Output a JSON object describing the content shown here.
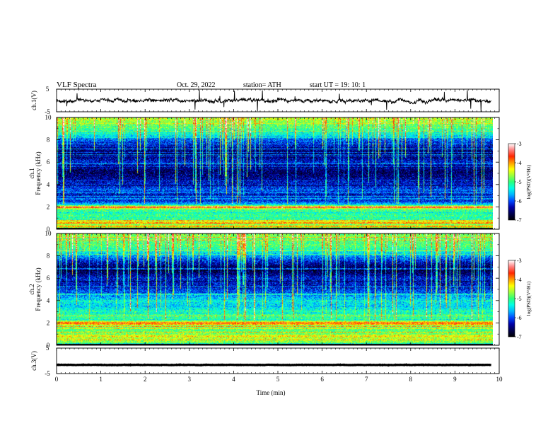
{
  "header": {
    "title": "VLF  Spectra",
    "date": "Oct. 29, 2022",
    "station": "station= ATH",
    "start": "start  UT  =    19: 10: 1"
  },
  "colors": {
    "colormap": [
      "#000000",
      "#00004d",
      "#0000a8",
      "#0047ff",
      "#00b4ff",
      "#00ffe6",
      "#2cff7a",
      "#9bff3c",
      "#ffff00",
      "#ff9900",
      "#ff2600",
      "#ff8080",
      "#ffffff"
    ],
    "trace": "#000000"
  },
  "chart_data": [
    {
      "type": "line",
      "name": "channel-1-voltage",
      "ylabel": "ch.1(V)",
      "ylim": [
        -5,
        5
      ],
      "yticks": [
        "5",
        "-5"
      ],
      "xlim": [
        0,
        10
      ],
      "trace_level": 0,
      "trace_noise": 1.6
    },
    {
      "type": "heatmap",
      "name": "channel-1-spectrogram",
      "ylabel": "ch.1\nFrequency  (kHz)",
      "ylim": [
        0,
        10
      ],
      "yticks": [
        "0",
        "2",
        "4",
        "6",
        "8",
        "10"
      ],
      "xlim": [
        0,
        9.85
      ],
      "colorbar": {
        "label": "log(PSD)(V²/Hz)",
        "range": [
          -7,
          -3
        ],
        "ticks": [
          "-3",
          "-4",
          "-5",
          "-6",
          "-7"
        ]
      },
      "profile_khz": [
        0.0,
        0.2,
        0.4,
        0.6,
        0.8,
        1.0,
        1.2,
        1.6,
        1.9,
        2.0,
        2.2,
        2.5,
        3.0,
        3.5,
        4.0,
        4.5,
        5.0,
        5.5,
        6.0,
        6.5,
        7.0,
        7.5,
        8.0,
        8.5,
        9.0,
        9.5,
        10.0
      ],
      "profile_logpsd": [
        -7.0,
        -4.0,
        -4.8,
        -4.1,
        -4.8,
        -5.2,
        -5.0,
        -5.3,
        -4.4,
        -3.9,
        -5.5,
        -6.1,
        -6.2,
        -6.0,
        -6.2,
        -6.4,
        -6.6,
        -6.5,
        -6.2,
        -6.5,
        -6.5,
        -6.3,
        -5.9,
        -5.3,
        -5.0,
        -4.7,
        -4.6
      ]
    },
    {
      "type": "heatmap",
      "name": "channel-2-spectrogram",
      "ylabel": "ch.2\nFrequency  (kHz)",
      "ylim": [
        0,
        10
      ],
      "yticks": [
        "0",
        "2",
        "4",
        "6",
        "8",
        "10"
      ],
      "xlim": [
        0,
        9.85
      ],
      "colorbar": {
        "label": "log(PSD)(V²/Hz)",
        "range": [
          -7,
          -3
        ],
        "ticks": [
          "-3",
          "-4",
          "-5",
          "-6",
          "-7"
        ]
      },
      "profile_khz": [
        0.0,
        0.2,
        0.5,
        0.8,
        1.0,
        1.3,
        1.6,
        1.9,
        2.0,
        2.2,
        2.5,
        3.0,
        3.5,
        4.0,
        4.5,
        5.0,
        5.5,
        6.0,
        6.5,
        7.0,
        7.5,
        8.0,
        8.5,
        9.0,
        9.5,
        10.0
      ],
      "profile_logpsd": [
        -7.0,
        -4.8,
        -4.6,
        -4.3,
        -4.8,
        -4.9,
        -5.0,
        -4.0,
        -3.7,
        -4.9,
        -5.1,
        -5.2,
        -5.5,
        -5.4,
        -5.8,
        -6.1,
        -6.3,
        -6.2,
        -6.6,
        -6.6,
        -6.2,
        -5.7,
        -5.2,
        -4.9,
        -4.8,
        -4.8
      ]
    },
    {
      "type": "line",
      "name": "channel-3-voltage",
      "ylabel": "ch.3(V)",
      "ylim": [
        -5,
        5
      ],
      "yticks": [
        "5",
        "-5"
      ],
      "xlim": [
        0,
        10
      ],
      "trace_level": -1.6,
      "trace_noise": 0.15
    }
  ],
  "xaxis": {
    "label": "Time  (min)",
    "range": [
      0,
      10
    ],
    "ticks": [
      "0",
      "1",
      "2",
      "3",
      "4",
      "5",
      "6",
      "7",
      "8",
      "9",
      "10"
    ]
  }
}
